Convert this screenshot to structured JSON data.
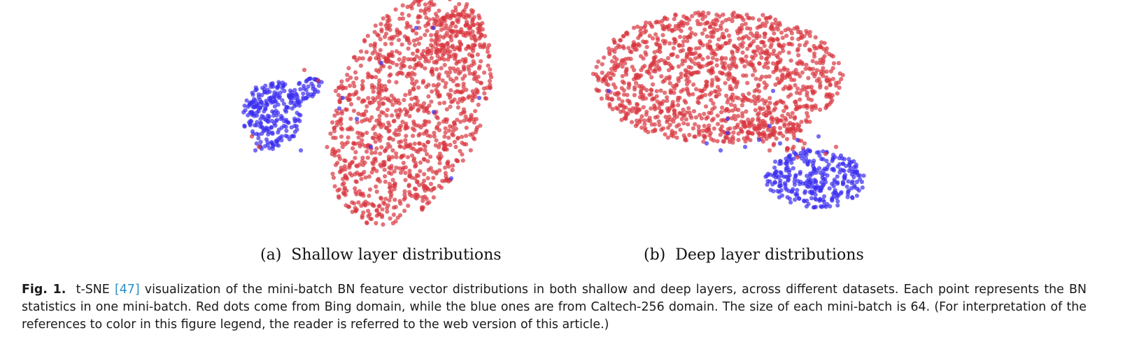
{
  "figure": {
    "panels": [
      {
        "label": "(a)",
        "title": "Shallow layer distributions"
      },
      {
        "label": "(b)",
        "title": "Deep layer distributions"
      }
    ],
    "caption": {
      "fig_label": "Fig. 1.",
      "text_before_ref": "t-SNE ",
      "ref": "[47]",
      "text_after_ref": " visualization of the mini-batch BN feature vector distributions in both shallow and deep layers, across different datasets. Each point represents the BN statistics in one mini-batch. Red dots come from Bing domain, while the blue ones are from Caltech-256 domain. The size of each mini-batch is 64. (For interpretation of the references to color in this figure legend, the reader is referred to the web version of this article.)"
    }
  },
  "chart_data": [
    {
      "type": "scatter",
      "series": [
        {
          "color": "#d62728",
          "approx_points": 1500
        },
        {
          "color": "#1f1fff",
          "approx_points": 300
        }
      ]
    },
    {
      "type": "scatter",
      "series": [
        {
          "color": "#d62728",
          "approx_points": 1500
        },
        {
          "color": "#1f1fff",
          "approx_points": 300
        }
      ]
    }
  ],
  "colors": {
    "red": "#d9363e",
    "blue": "#3a2ef0",
    "ref": "#2a8fc7"
  }
}
